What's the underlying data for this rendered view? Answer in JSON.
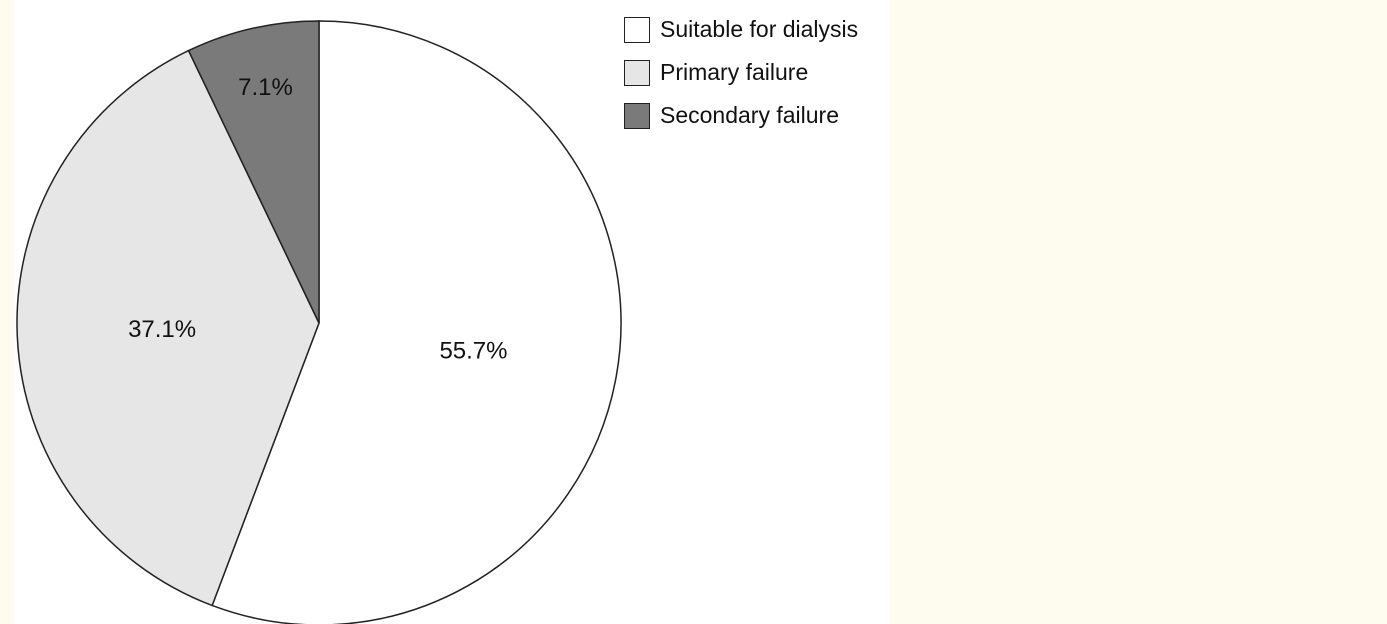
{
  "chart_data": {
    "type": "pie",
    "slices": [
      {
        "label": "Suitable for dialysis",
        "value": 55.7,
        "value_label": "55.7%",
        "color": "#ffffff"
      },
      {
        "label": "Primary failure",
        "value": 37.1,
        "value_label": "37.1%",
        "color": "#e6e6e6"
      },
      {
        "label": "Secondary failure",
        "value": 7.1,
        "value_label": "7.1%",
        "color": "#7a7a7a"
      }
    ],
    "start_angle_deg": 0,
    "direction": "clockwise",
    "legend": {
      "placement": "top-right",
      "items": [
        "Suitable for dialysis",
        "Primary failure",
        "Secondary failure"
      ]
    }
  },
  "colors": {
    "background": "#ffffff",
    "side_panel": "#fefbef",
    "outline": "#222222"
  }
}
